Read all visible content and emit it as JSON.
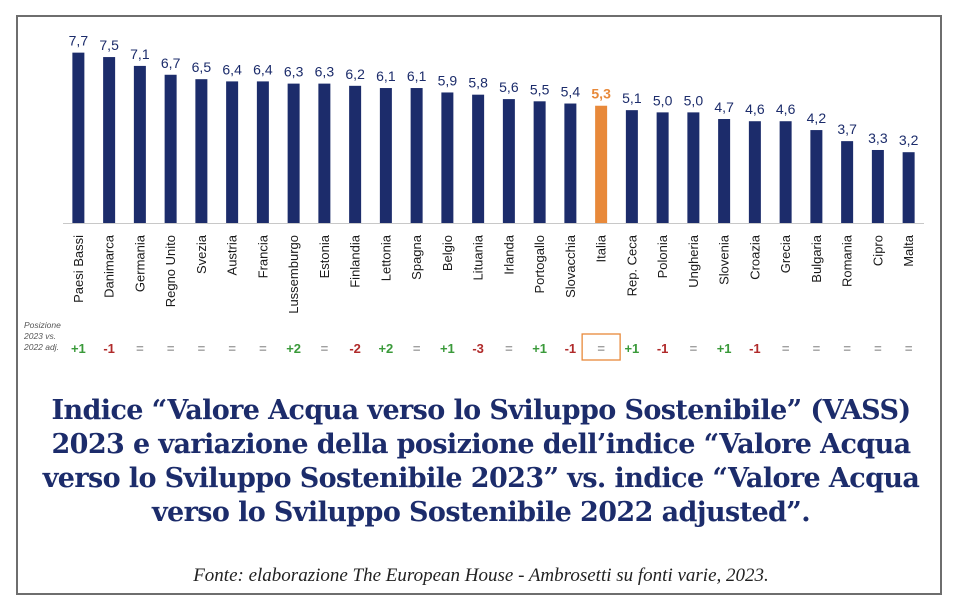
{
  "chart_data": {
    "type": "bar",
    "categories": [
      "Paesi Bassi",
      "Danimarca",
      "Germania",
      "Regno Unito",
      "Svezia",
      "Austria",
      "Francia",
      "Lussemburgo",
      "Estonia",
      "Finlandia",
      "Lettonia",
      "Spagna",
      "Belgio",
      "Lituania",
      "Irlanda",
      "Portogallo",
      "Slovacchia",
      "Italia",
      "Rep. Ceca",
      "Polonia",
      "Ungheria",
      "Slovenia",
      "Croazia",
      "Grecia",
      "Bulgaria",
      "Romania",
      "Cipro",
      "Malta"
    ],
    "values": [
      7.7,
      7.5,
      7.1,
      6.7,
      6.5,
      6.4,
      6.4,
      6.3,
      6.3,
      6.2,
      6.1,
      6.1,
      5.9,
      5.8,
      5.6,
      5.5,
      5.4,
      5.3,
      5.1,
      5.0,
      5.0,
      4.7,
      4.6,
      4.6,
      4.2,
      3.7,
      3.3,
      3.2
    ],
    "value_labels": [
      "7,7",
      "7,5",
      "7,1",
      "6,7",
      "6,5",
      "6,4",
      "6,4",
      "6,3",
      "6,3",
      "6,2",
      "6,1",
      "6,1",
      "5,9",
      "5,8",
      "5,6",
      "5,5",
      "5,4",
      "5,3",
      "5,1",
      "5,0",
      "5,0",
      "4,7",
      "4,6",
      "4,6",
      "4,2",
      "3,7",
      "3,3",
      "3,2"
    ],
    "position_change": [
      "+1",
      "-1",
      "=",
      "=",
      "=",
      "=",
      "=",
      "+2",
      "=",
      "-2",
      "+2",
      "=",
      "+1",
      "-3",
      "=",
      "+1",
      "-1",
      "=",
      "+1",
      "-1",
      "=",
      "+1",
      "-1",
      "=",
      "=",
      "=",
      "=",
      "="
    ],
    "position_change_label": "Posizione 2023 vs. 2022 adj.",
    "highlight": "Italia",
    "ylim": [
      0,
      8
    ],
    "colors": {
      "bar": "#1c2c6b",
      "highlight": "#e8893a",
      "positive": "#3a9a3a",
      "negative": "#b02a2a",
      "neutral": "#a0a0a0"
    }
  },
  "caption": {
    "title": "Indice “Valore Acqua verso lo Sviluppo Sostenibile” (VASS) 2023 e variazione della posizione dell’indice “Valore Acqua verso lo Sviluppo Sostenibile 2023” vs. indice “Valore Acqua verso lo Sviluppo Sostenibile 2022 adjusted”.",
    "source": "Fonte: elaborazione The European House - Ambrosetti su fonti varie, 2023."
  }
}
